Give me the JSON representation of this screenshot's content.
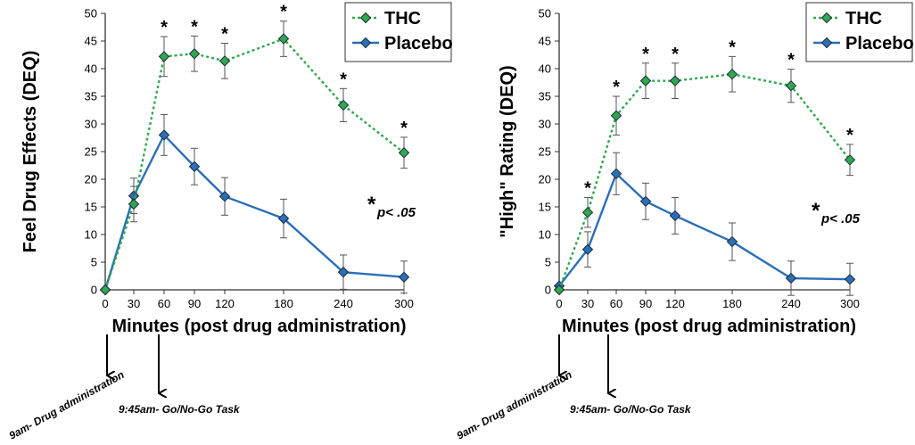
{
  "chart_data": [
    {
      "type": "line",
      "ylabel": "Feel Drug Effects (DEQ)",
      "xlabel": "Minutes (post drug administration)",
      "x": [
        0,
        30,
        60,
        90,
        120,
        180,
        240,
        300
      ],
      "xticks": [
        "0",
        "30",
        "60",
        "90",
        "120",
        "180",
        "240",
        "300"
      ],
      "xlim": [
        0,
        300
      ],
      "ylim": [
        0,
        50
      ],
      "yticks": [
        "0",
        "5",
        "10",
        "15",
        "20",
        "25",
        "30",
        "35",
        "40",
        "45",
        "50"
      ],
      "legend_position": "top-right",
      "series": [
        {
          "name": "THC",
          "color": "#2fa84f",
          "line_style": "dotted",
          "values": [
            0,
            15.5,
            42.2,
            42.7,
            41.4,
            45.4,
            33.4,
            24.8
          ],
          "error": [
            0,
            3.2,
            3.6,
            3.2,
            3.2,
            3.2,
            3.0,
            2.8
          ],
          "significant": [
            false,
            false,
            true,
            true,
            true,
            true,
            true,
            true
          ]
        },
        {
          "name": "Placebo",
          "color": "#2a6fb8",
          "line_style": "solid",
          "values": [
            0,
            17.0,
            28.0,
            22.3,
            16.9,
            12.9,
            3.2,
            2.3
          ],
          "error": [
            0,
            3.2,
            3.7,
            3.3,
            3.4,
            3.5,
            3.1,
            2.9
          ],
          "significant": [
            false,
            false,
            false,
            false,
            false,
            false,
            false,
            false
          ]
        }
      ],
      "significance_marker": "*",
      "note_star": "*",
      "note_text": "p< .05",
      "annotations": [
        {
          "text": "9am- Drug administration",
          "at_x": 0
        },
        {
          "text": "9:45am- Go/No-Go Task",
          "at_x": 45
        }
      ]
    },
    {
      "type": "line",
      "ylabel": "\"High\" Rating (DEQ)",
      "xlabel": "Minutes (post drug administration)",
      "x": [
        0,
        30,
        60,
        90,
        120,
        180,
        240,
        300
      ],
      "xticks": [
        "0",
        "30",
        "60",
        "90",
        "120",
        "180",
        "240",
        "300"
      ],
      "xlim": [
        0,
        300
      ],
      "ylim": [
        0,
        50
      ],
      "yticks": [
        "0",
        "5",
        "10",
        "15",
        "20",
        "25",
        "30",
        "35",
        "40",
        "45",
        "50"
      ],
      "legend_position": "top-right",
      "series": [
        {
          "name": "THC",
          "color": "#2fa84f",
          "line_style": "dotted",
          "values": [
            0,
            14.0,
            31.5,
            37.8,
            37.8,
            39.0,
            36.9,
            23.5
          ],
          "error": [
            0,
            2.7,
            3.5,
            3.2,
            3.2,
            3.2,
            3.0,
            2.8
          ],
          "significant": [
            false,
            true,
            true,
            true,
            true,
            true,
            true,
            true
          ]
        },
        {
          "name": "Placebo",
          "color": "#2a6fb8",
          "line_style": "solid",
          "values": [
            0.7,
            7.3,
            21.0,
            16.0,
            13.4,
            8.7,
            2.1,
            1.9
          ],
          "error": [
            0,
            3.2,
            3.8,
            3.3,
            3.3,
            3.4,
            3.1,
            2.9
          ],
          "significant": [
            false,
            false,
            false,
            false,
            false,
            false,
            false,
            false
          ]
        }
      ],
      "significance_marker": "*",
      "note_star": "*",
      "note_text": "p< .05",
      "annotations": [
        {
          "text": "9am- Drug administration",
          "at_x": 0
        },
        {
          "text": "9:45am- Go/No-Go Task",
          "at_x": 45
        }
      ]
    }
  ]
}
